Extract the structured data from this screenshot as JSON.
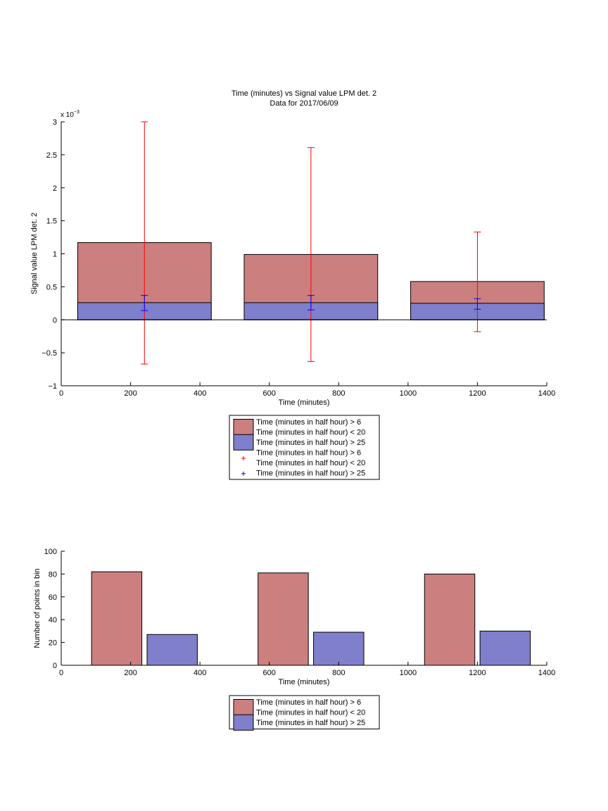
{
  "chart_data": [
    {
      "type": "bar",
      "title": "Time (minutes) vs Signal value LPM det. 2",
      "subtitle": "Data for 2017/06/09",
      "xlabel": "Time (minutes)",
      "ylabel": "Signal value LPM det. 2",
      "y_exponent_label": "x 10",
      "y_exponent_power": "−3",
      "xlim": [
        0,
        1400
      ],
      "ylim": [
        -1,
        3
      ],
      "x_ticks": [
        0,
        200,
        400,
        600,
        800,
        1000,
        1200,
        1400
      ],
      "y_ticks": [
        -1,
        -0.5,
        0,
        0.5,
        1,
        1.5,
        2,
        2.5,
        3
      ],
      "y_tick_labels": [
        "−1",
        "−0.5",
        "0",
        "0.5",
        "1",
        "1.5",
        "2",
        "2.5",
        "3"
      ],
      "bar_width": 385,
      "x": [
        240,
        720,
        1200
      ],
      "grid": false,
      "legend_position": "below",
      "legend": [
        {
          "marker": "bar",
          "color": "#cc7f7f",
          "lines": [
            "Time (minutes in half hour) > 6",
            "Time (minutes in half hour) < 20"
          ]
        },
        {
          "marker": "bar",
          "color": "#7f7fcc",
          "lines": [
            "Time (minutes in half hour) > 25"
          ]
        },
        {
          "marker": "plus",
          "color": "#ff0000",
          "lines": [
            "Time (minutes in half hour) > 6",
            "Time (minutes in half hour) < 20"
          ]
        },
        {
          "marker": "plus",
          "color": "#0000ff",
          "lines": [
            "Time (minutes in half hour) > 25"
          ]
        }
      ],
      "series": [
        {
          "name": "Time (minutes in half hour) > 6 Time (minutes in half hour) < 20",
          "color": "#cc7f7f",
          "values": [
            1.17,
            0.99,
            0.58
          ],
          "error_low": [
            -0.67,
            -0.63,
            -0.18
          ],
          "error_high": [
            3.0,
            2.61,
            1.33
          ],
          "error_color": "#ff0000"
        },
        {
          "name": "Time (minutes in half hour) > 25",
          "color": "#7f7fcc",
          "values": [
            0.26,
            0.26,
            0.25
          ],
          "error_low": [
            0.14,
            0.15,
            0.16
          ],
          "error_high": [
            0.37,
            0.37,
            0.32
          ],
          "error_color": "#0000ff"
        }
      ]
    },
    {
      "type": "bar",
      "xlabel": "Time (minutes)",
      "ylabel": "Number of points in bin",
      "xlim": [
        0,
        1400
      ],
      "ylim": [
        0,
        100
      ],
      "x_ticks": [
        0,
        200,
        400,
        600,
        800,
        1000,
        1200,
        1400
      ],
      "y_ticks": [
        0,
        20,
        40,
        60,
        80,
        100
      ],
      "bar_width": 145,
      "grid": false,
      "legend_position": "below",
      "legend": [
        {
          "marker": "bar",
          "color": "#cc7f7f",
          "lines": [
            "Time (minutes in half hour) > 6",
            "Time (minutes in half hour) < 20"
          ]
        },
        {
          "marker": "bar",
          "color": "#7f7fcc",
          "lines": [
            "Time (minutes in half hour) > 25"
          ]
        }
      ],
      "series": [
        {
          "name": "Time (minutes in half hour) > 6 Time (minutes in half hour) < 20",
          "color": "#cc7f7f",
          "x": [
            160,
            640,
            1120
          ],
          "values": [
            82,
            81,
            80
          ]
        },
        {
          "name": "Time (minutes in half hour) > 25",
          "color": "#7f7fcc",
          "x": [
            320,
            800,
            1280
          ],
          "values": [
            27,
            29,
            30
          ]
        }
      ]
    }
  ]
}
